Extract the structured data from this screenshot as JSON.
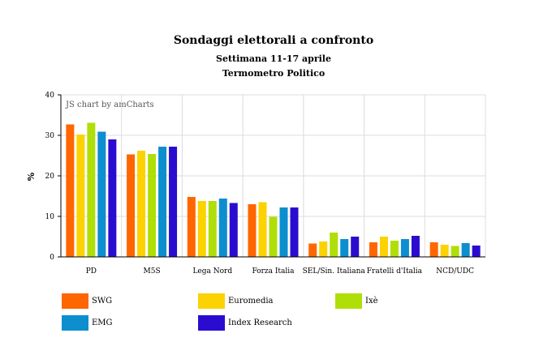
{
  "chart_data": {
    "type": "bar",
    "title": "Sondaggi elettorali a confronto",
    "subtitle": "Settimana 11-17 aprile",
    "subtitle2": "Termometro Politico",
    "credit": "JS chart by amCharts",
    "ylabel": "%",
    "xlabel": "",
    "ylim": [
      0,
      40
    ],
    "yticks": [
      0,
      10,
      20,
      30,
      40
    ],
    "grid": true,
    "legend_position": "bottom",
    "categories": [
      "PD",
      "M5S",
      "Lega Nord",
      "Forza Italia",
      "SEL/Sin. Italiana",
      "Fratelli d'Italia",
      "NCD/UDC"
    ],
    "series": [
      {
        "name": "SWG",
        "color": "#FF6600",
        "values": [
          32.7,
          25.3,
          14.8,
          13.0,
          3.3,
          3.6,
          3.6
        ]
      },
      {
        "name": "Euromedia",
        "color": "#FCD202",
        "values": [
          30.2,
          26.2,
          13.8,
          13.5,
          3.8,
          5.0,
          3.0
        ]
      },
      {
        "name": "Ixè",
        "color": "#B0DE09",
        "values": [
          33.1,
          25.4,
          13.8,
          9.9,
          6.0,
          4.0,
          2.7
        ]
      },
      {
        "name": "EMG",
        "color": "#0D8ECF",
        "values": [
          30.9,
          27.2,
          14.4,
          12.2,
          4.4,
          4.4,
          3.4
        ]
      },
      {
        "name": "Index Research",
        "color": "#2A0CD0",
        "values": [
          29.0,
          27.2,
          13.3,
          12.2,
          5.0,
          5.2,
          2.8
        ]
      }
    ]
  }
}
